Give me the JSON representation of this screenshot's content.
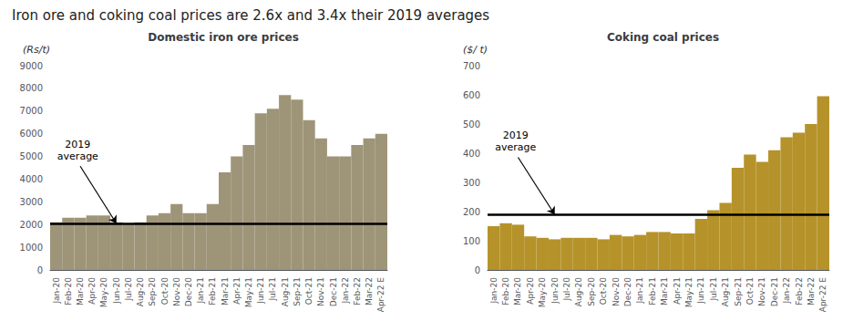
{
  "title": "Iron ore and coking coal prices are 2.6x and 3.4x their 2019 averages",
  "chart_data": [
    {
      "type": "bar",
      "title": "Domestic iron ore prices",
      "ylabel": "(Rs/t)",
      "categories": [
        "Jan-20",
        "Feb-20",
        "Mar-20",
        "Apr-20",
        "May-20",
        "Jun-20",
        "Jul-20",
        "Aug-20",
        "Sep-20",
        "Oct-20",
        "Nov-20",
        "Dec-20",
        "Jan-21",
        "Feb-21",
        "Mar-21",
        "Apr-21",
        "May-21",
        "Jun-21",
        "Jul-21",
        "Aug-21",
        "Sep-21",
        "Oct-21",
        "Nov-21",
        "Dec-21",
        "Jan-22",
        "Feb-22",
        "Mar-22",
        "Apr-22 E"
      ],
      "values": [
        2100,
        2300,
        2300,
        2400,
        2400,
        2100,
        2000,
        2100,
        2400,
        2500,
        2900,
        2500,
        2500,
        2900,
        4300,
        5000,
        5500,
        6900,
        7100,
        7700,
        7500,
        6600,
        5800,
        5000,
        5000,
        5500,
        5800,
        6000
      ],
      "color": "#9e9478",
      "ylim": [
        0,
        9000
      ],
      "yticks": [
        0,
        1000,
        2000,
        3000,
        4000,
        5000,
        6000,
        7000,
        8000,
        9000
      ],
      "grid": false,
      "annotations": [
        {
          "text": "2019\naverage",
          "x": "Jun-20",
          "y": 2050
        }
      ]
    },
    {
      "type": "bar",
      "title": "Coking coal prices",
      "ylabel": "($/ t)",
      "categories": [
        "Jan-20",
        "Feb-20",
        "Mar-20",
        "Apr-20",
        "May-20",
        "Jun-20",
        "Jul-20",
        "Aug-20",
        "Sep-20",
        "Oct-20",
        "Nov-20",
        "Dec-20",
        "Jan-21",
        "Feb-21",
        "Mar-21",
        "Apr-21",
        "May-21",
        "Jun-21",
        "Jul-21",
        "Aug-21",
        "Sep-21",
        "Oct-21",
        "Nov-21",
        "Dec-21",
        "Jan-22",
        "Feb-22",
        "Mar-22",
        "Apr-22 E"
      ],
      "values": [
        150,
        160,
        155,
        115,
        110,
        105,
        110,
        110,
        110,
        105,
        120,
        115,
        120,
        130,
        130,
        125,
        125,
        175,
        205,
        230,
        350,
        395,
        370,
        410,
        455,
        470,
        500,
        595
      ],
      "color": "#b5932a",
      "ylim": [
        0,
        700
      ],
      "yticks": [
        0,
        100,
        200,
        300,
        400,
        500,
        600,
        700
      ],
      "grid": false,
      "annotations": [
        {
          "text": "2019\naverage",
          "x": "Jun-20",
          "y": 190
        }
      ]
    }
  ]
}
